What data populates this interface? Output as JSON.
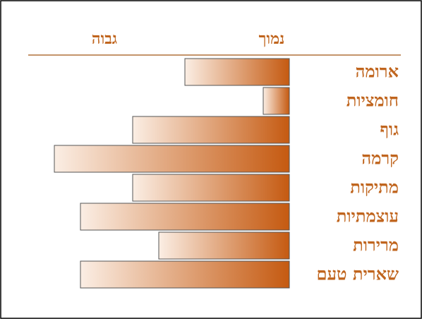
{
  "chart_data": {
    "type": "bar",
    "orientation": "horizontal",
    "low_label": "נמוך",
    "high_label": "גבוה",
    "categories": [
      "ארומה",
      "חומציות",
      "גוף",
      "קרמה",
      "מתיקות",
      "עוצמתיות",
      "מרירות",
      "שארית טעם"
    ],
    "values": [
      4,
      1,
      6,
      9,
      6,
      8,
      5,
      8
    ],
    "color": "#c55a11",
    "xlim": [
      0,
      10
    ]
  }
}
